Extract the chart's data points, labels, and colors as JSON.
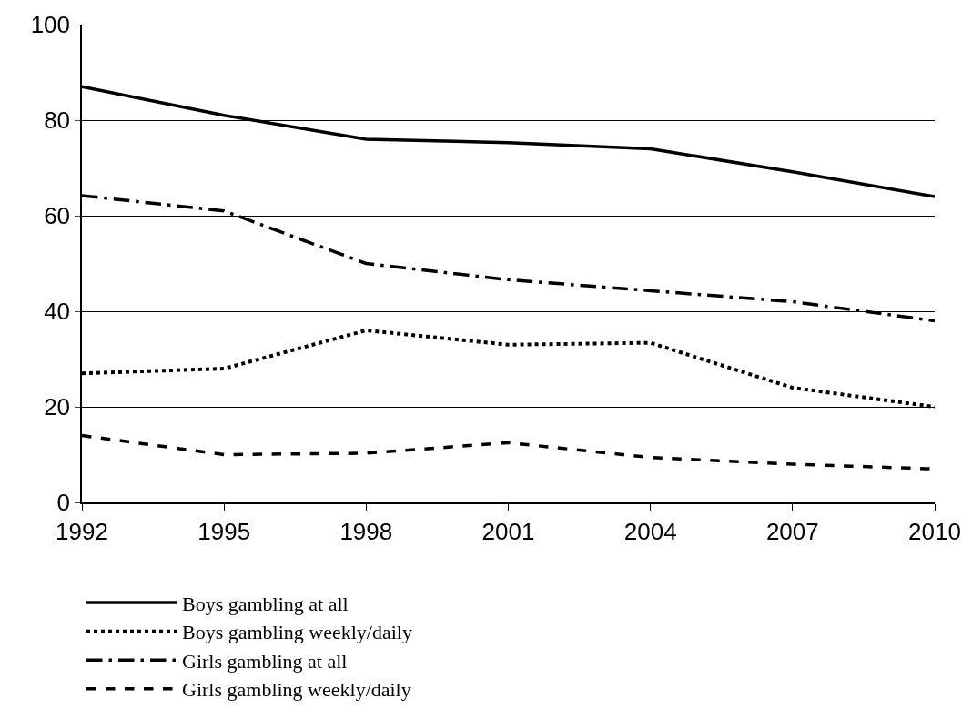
{
  "chart_data": {
    "type": "line",
    "categories": [
      "1992",
      "1995",
      "1998",
      "2001",
      "2004",
      "2007",
      "2010"
    ],
    "series": [
      {
        "name": "Boys gambling at all",
        "color": "#000000",
        "line_style": "solid",
        "values": [
          87,
          81,
          76,
          75.3,
          74,
          69.2,
          64
        ]
      },
      {
        "name": "Boys gambling weekly/daily",
        "color": "#000000",
        "line_style": "dotted",
        "values": [
          27,
          28,
          36,
          33,
          33.4,
          24,
          20
        ]
      },
      {
        "name": "Girls gambling at all",
        "color": "#000000",
        "line_style": "dashdot",
        "values": [
          64.2,
          61,
          50,
          46.6,
          44.3,
          42,
          38
        ]
      },
      {
        "name": "Girls gambling weekly/daily",
        "color": "#000000",
        "line_style": "dashed",
        "values": [
          14,
          10,
          10.3,
          12.5,
          9.4,
          8,
          7
        ]
      }
    ],
    "ylim": [
      0,
      100
    ],
    "yticks": [
      0,
      20,
      40,
      60,
      80,
      100
    ],
    "grid": "y",
    "legend": "bottom",
    "marker": "none"
  }
}
